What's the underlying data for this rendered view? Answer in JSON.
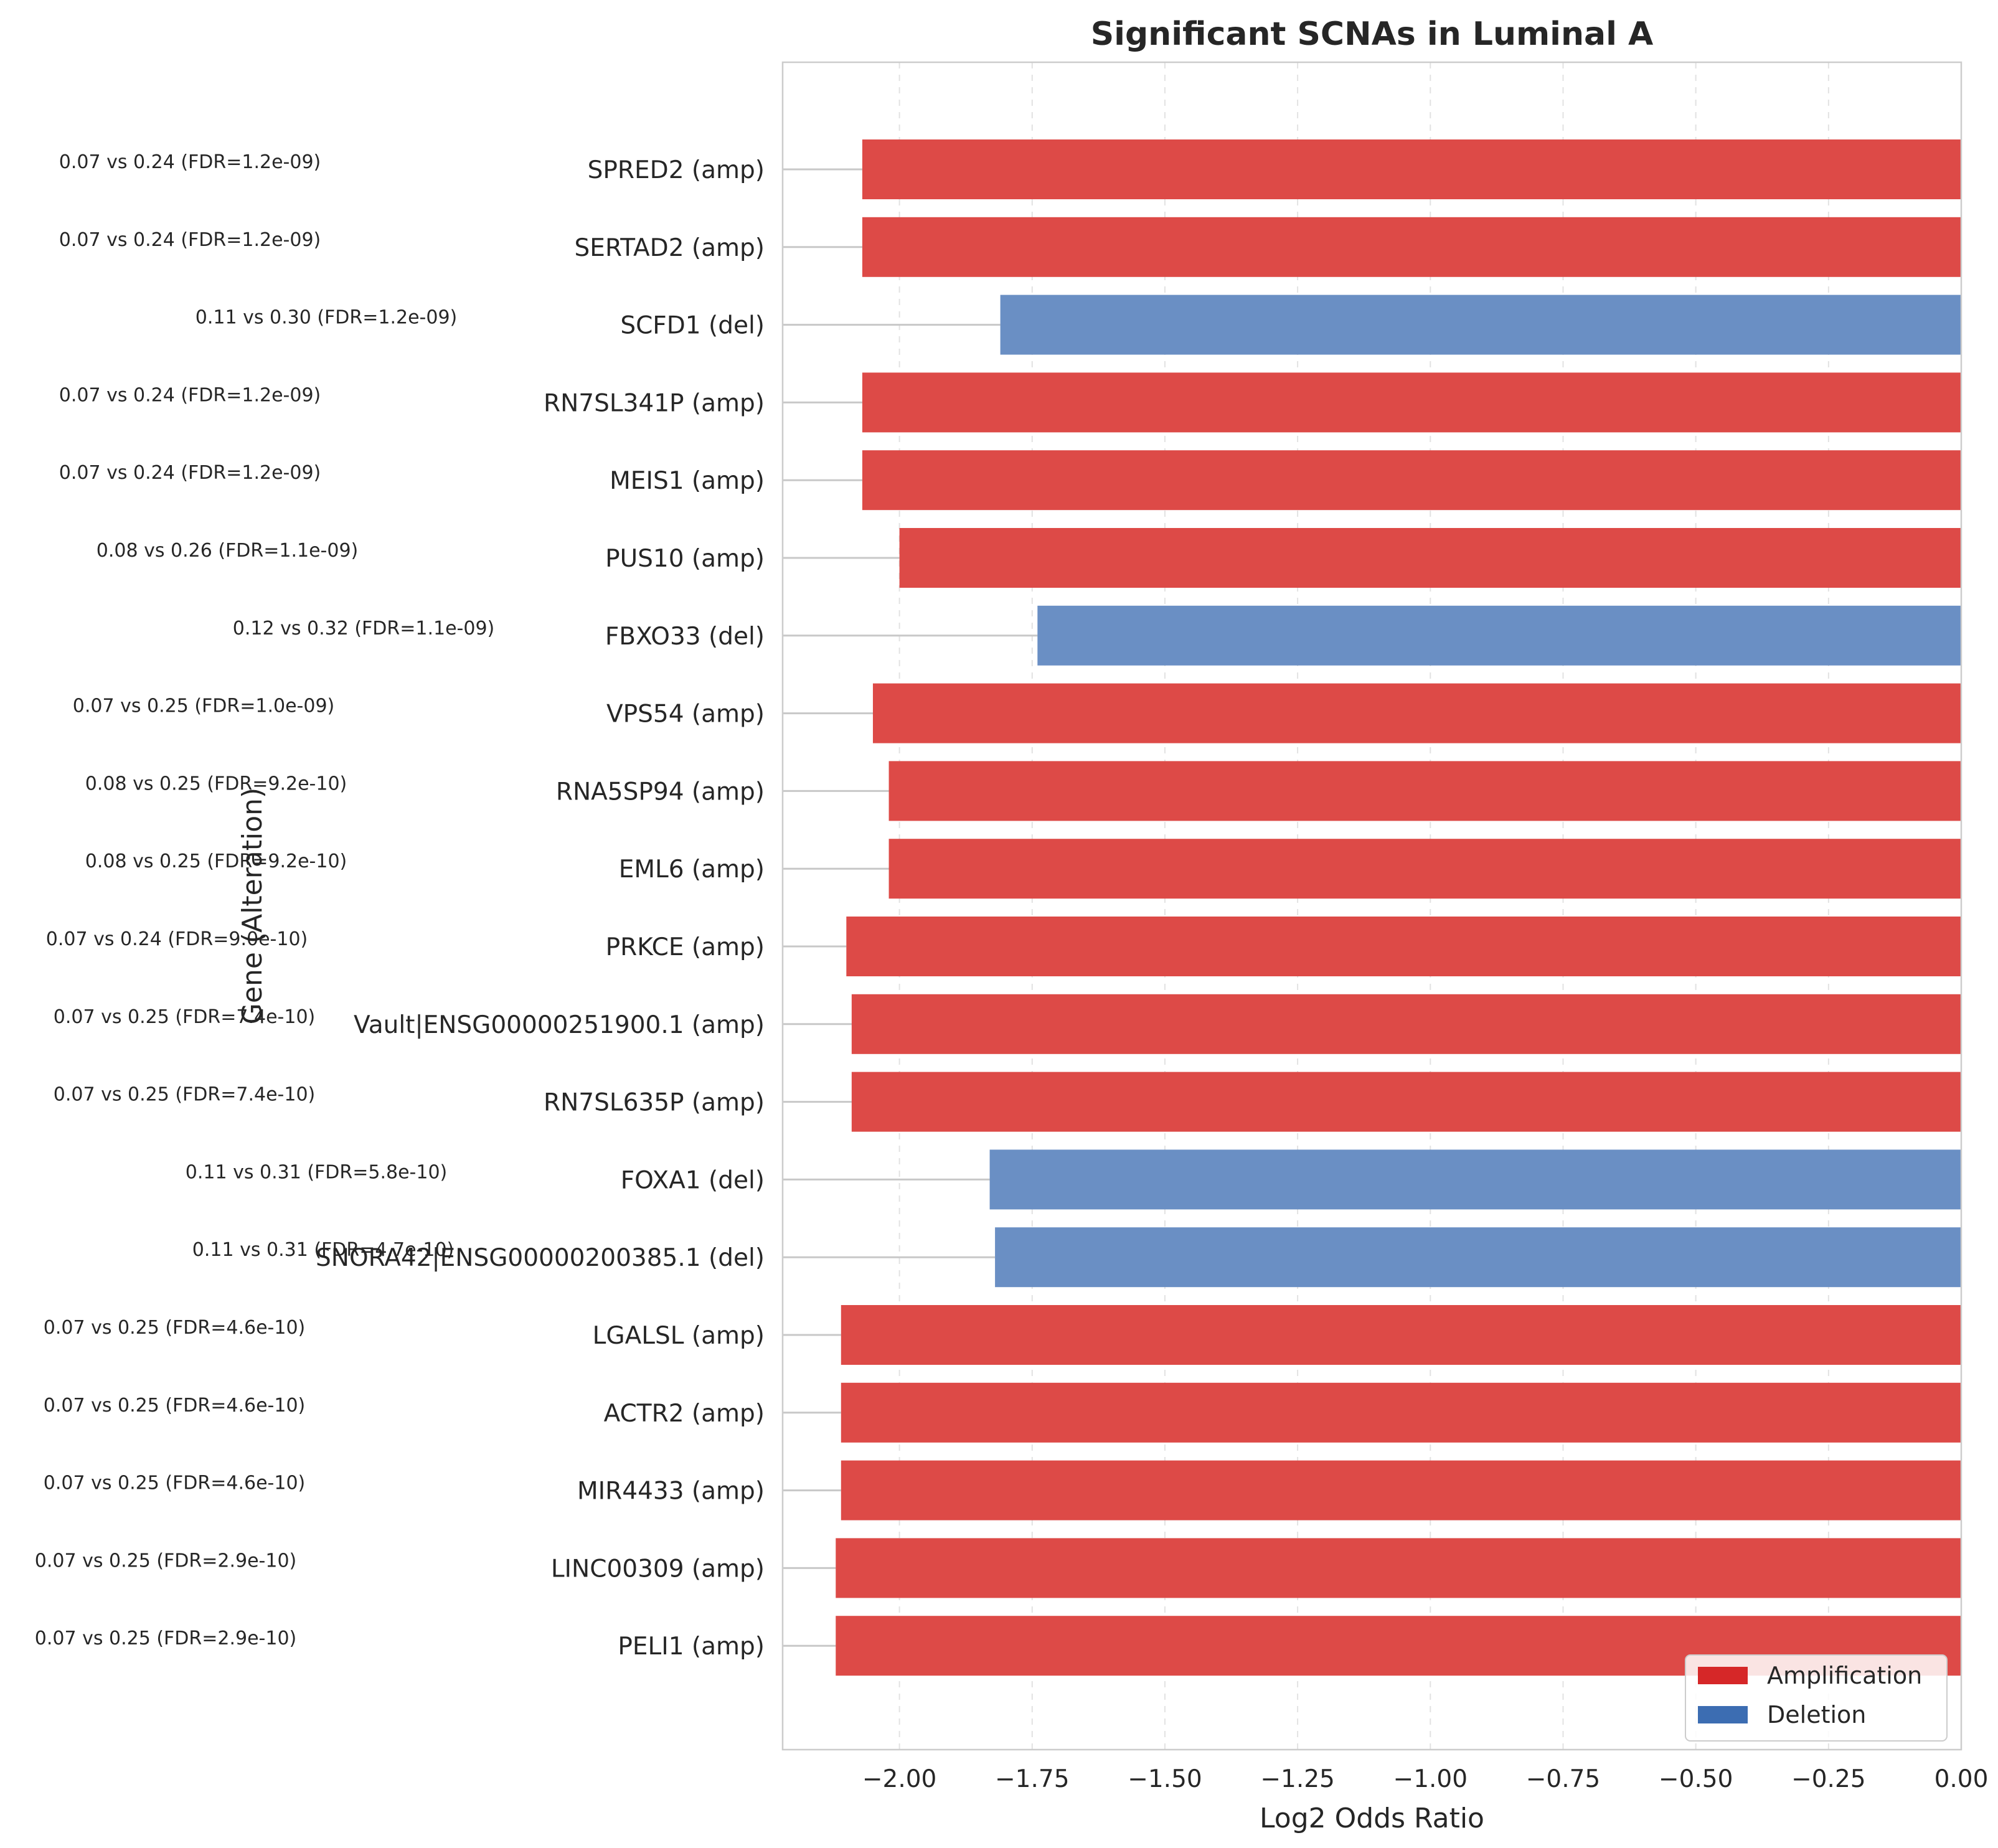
{
  "chart_data": {
    "type": "bar",
    "orientation": "horizontal",
    "title": "Significant SCNAs in Luminal A",
    "xlabel": "Log2 Odds Ratio",
    "ylabel": "Gene (Alteration)",
    "xlim": [
      -2.22,
      0.0
    ],
    "xticks": [
      -2.0,
      -1.75,
      -1.5,
      -1.25,
      -1.0,
      -0.75,
      -0.5,
      -0.25,
      0.0
    ],
    "xtick_labels": [
      "−2.00",
      "−1.75",
      "−1.50",
      "−1.25",
      "−1.00",
      "−0.75",
      "−0.50",
      "−0.25",
      "0.00"
    ],
    "grid": true,
    "legend": {
      "placement": "bottom-right",
      "entries": [
        {
          "label": "Amplification",
          "color": "#d62728"
        },
        {
          "label": "Deletion",
          "color": "#3c6db2"
        }
      ]
    },
    "colors": {
      "amp": "#dd4a47",
      "del": "#6a8fc4"
    },
    "bars": [
      {
        "label": "SPRED2 (amp)",
        "type": "amp",
        "value": -2.07,
        "annotation": "0.07 vs 0.24 (FDR=1.2e-09)"
      },
      {
        "label": "SERTAD2 (amp)",
        "type": "amp",
        "value": -2.07,
        "annotation": "0.07 vs 0.24 (FDR=1.2e-09)"
      },
      {
        "label": "SCFD1 (del)",
        "type": "del",
        "value": -1.81,
        "annotation": "0.11 vs 0.30 (FDR=1.2e-09)"
      },
      {
        "label": "RN7SL341P (amp)",
        "type": "amp",
        "value": -2.07,
        "annotation": "0.07 vs 0.24 (FDR=1.2e-09)"
      },
      {
        "label": "MEIS1 (amp)",
        "type": "amp",
        "value": -2.07,
        "annotation": "0.07 vs 0.24 (FDR=1.2e-09)"
      },
      {
        "label": "PUS10 (amp)",
        "type": "amp",
        "value": -2.0,
        "annotation": "0.08 vs 0.26 (FDR=1.1e-09)"
      },
      {
        "label": "FBXO33 (del)",
        "type": "del",
        "value": -1.74,
        "annotation": "0.12 vs 0.32 (FDR=1.1e-09)"
      },
      {
        "label": "VPS54 (amp)",
        "type": "amp",
        "value": -2.05,
        "annotation": "0.07 vs 0.25 (FDR=1.0e-09)"
      },
      {
        "label": "RNA5SP94 (amp)",
        "type": "amp",
        "value": -2.02,
        "annotation": "0.08 vs 0.25 (FDR=9.2e-10)"
      },
      {
        "label": "EML6 (amp)",
        "type": "amp",
        "value": -2.02,
        "annotation": "0.08 vs 0.25 (FDR=9.2e-10)"
      },
      {
        "label": "PRKCE (amp)",
        "type": "amp",
        "value": -2.1,
        "annotation": "0.07 vs 0.24 (FDR=9.0e-10)"
      },
      {
        "label": "Vault|ENSG00000251900.1 (amp)",
        "type": "amp",
        "value": -2.09,
        "annotation": "0.07 vs 0.25 (FDR=7.4e-10)"
      },
      {
        "label": "RN7SL635P (amp)",
        "type": "amp",
        "value": -2.09,
        "annotation": "0.07 vs 0.25 (FDR=7.4e-10)"
      },
      {
        "label": "FOXA1 (del)",
        "type": "del",
        "value": -1.83,
        "annotation": "0.11 vs 0.31 (FDR=5.8e-10)"
      },
      {
        "label": "SNORA42|ENSG00000200385.1 (del)",
        "type": "del",
        "value": -1.82,
        "annotation": "0.11 vs 0.31 (FDR=4.7e-10)"
      },
      {
        "label": "LGALSL (amp)",
        "type": "amp",
        "value": -2.11,
        "annotation": "0.07 vs 0.25 (FDR=4.6e-10)"
      },
      {
        "label": "ACTR2 (amp)",
        "type": "amp",
        "value": -2.11,
        "annotation": "0.07 vs 0.25 (FDR=4.6e-10)"
      },
      {
        "label": "MIR4433 (amp)",
        "type": "amp",
        "value": -2.11,
        "annotation": "0.07 vs 0.25 (FDR=4.6e-10)"
      },
      {
        "label": "LINC00309 (amp)",
        "type": "amp",
        "value": -2.12,
        "annotation": "0.07 vs 0.25 (FDR=2.9e-10)"
      },
      {
        "label": "PELI1 (amp)",
        "type": "amp",
        "value": -2.12,
        "annotation": "0.07 vs 0.25 (FDR=2.9e-10)"
      }
    ]
  }
}
